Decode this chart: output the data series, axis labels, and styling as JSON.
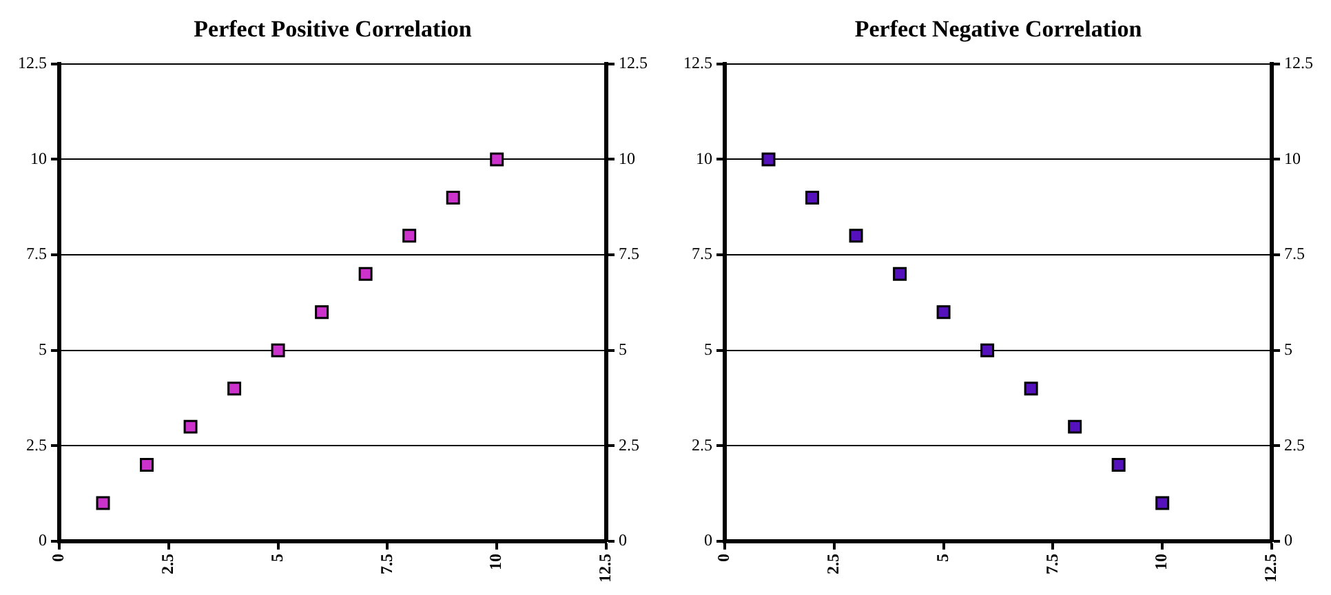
{
  "chart_data": [
    {
      "type": "scatter",
      "title": "Perfect Positive Correlation",
      "x": [
        1,
        2,
        3,
        4,
        5,
        6,
        7,
        8,
        9,
        10
      ],
      "values": [
        1,
        2,
        3,
        4,
        5,
        6,
        7,
        8,
        9,
        10
      ],
      "color": "#cc33cc",
      "marker": "square",
      "grid": "y",
      "xlim": [
        0,
        12.5
      ],
      "xticks": [
        0,
        2.5,
        5,
        7.5,
        10,
        12.5
      ],
      "ylim": [
        0,
        12.5
      ],
      "yticks": [
        0,
        2.5,
        5,
        7.5,
        10,
        12.5
      ],
      "y2lim": [
        0,
        12.5
      ],
      "y2ticks": [
        0,
        2.5,
        5,
        7.5,
        10,
        12.5
      ]
    },
    {
      "type": "scatter",
      "title": "Perfect Negative Correlation",
      "x": [
        1,
        2,
        3,
        4,
        5,
        6,
        7,
        8,
        9,
        10
      ],
      "values": [
        10,
        9,
        8,
        7,
        6,
        5,
        4,
        3,
        2,
        1
      ],
      "color": "#5511bb",
      "marker": "square",
      "grid": "y",
      "xlim": [
        0,
        12.5
      ],
      "xticks": [
        0,
        2.5,
        5,
        7.5,
        10,
        12.5
      ],
      "ylim": [
        0,
        12.5
      ],
      "yticks": [
        0,
        2.5,
        5,
        7.5,
        10,
        12.5
      ],
      "y2lim": [
        0,
        12.5
      ],
      "y2ticks": [
        0,
        2.5,
        5,
        7.5,
        10,
        12.5
      ]
    }
  ]
}
